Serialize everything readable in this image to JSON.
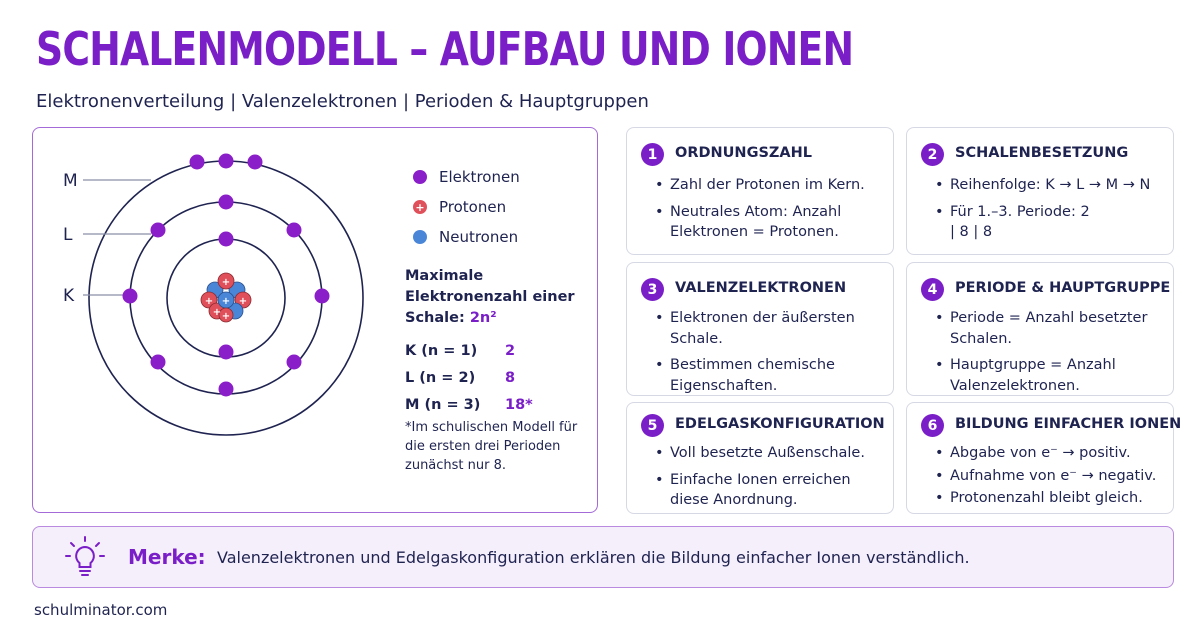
{
  "header": {
    "title": "SCHALENMODELL – AUFBAU UND IONEN",
    "subtitle": "Elektronenverteilung | Valenzelektronen | Perioden & Hauptgruppen"
  },
  "diagram": {
    "shell_labels": [
      "M",
      "L",
      "K"
    ],
    "legend": [
      {
        "label": "Elektronen",
        "color": "#8a1ec8"
      },
      {
        "label": "Protonen",
        "color": "#e0505a",
        "symbol": "+"
      },
      {
        "label": "Neutronen",
        "color": "#4a86d8"
      }
    ],
    "max_heading": "Maximale Elektronenzahl einer Schale:",
    "max_formula": "2n²",
    "capacities": [
      {
        "label": "K (n = 1)",
        "value": "2"
      },
      {
        "label": "L (n = 2)",
        "value": "8"
      },
      {
        "label": "M (n = 3)",
        "value": "18*"
      }
    ],
    "note": "*Im schulischen Modell für die ersten drei Perioden zunächst nur 8."
  },
  "cards": [
    {
      "num": "1",
      "title": "ORDNUNGSZAHL",
      "items": [
        "Zahl der Protonen im Kern.",
        "Neutrales Atom: Anzahl Elektronen = Protonen."
      ]
    },
    {
      "num": "2",
      "title": "SCHALENBESETZUNG",
      "items": [
        "Reihenfolge: K → L → M → N",
        "Für 1.–3. Periode: 2 | 8 | 8"
      ]
    },
    {
      "num": "3",
      "title": "VALENZELEKTRONEN",
      "items": [
        "Elektronen der äußersten Schale.",
        "Bestimmen chemische Eigenschaften."
      ]
    },
    {
      "num": "4",
      "title": "PERIODE & HAUPTGRUPPE",
      "items": [
        "Periode = Anzahl besetzter Schalen.",
        "Hauptgruppe = Anzahl Valenzelektronen."
      ]
    },
    {
      "num": "5",
      "title": "EDELGASKONFIGURATION",
      "items": [
        "Voll besetzte Außenschale.",
        "Einfache Ionen erreichen diese Anordnung."
      ]
    },
    {
      "num": "6",
      "title": "BILDUNG EINFACHER IONEN",
      "items": [
        "Abgabe von e⁻ → positiv.",
        "Aufnahme von e⁻ → negativ.",
        "Protonenzahl bleibt gleich."
      ]
    }
  ],
  "merke": {
    "label": "Merke:",
    "text": "Valenzelektronen und Edelgaskonfiguration erklären die Bildung einfacher Ionen verständlich.",
    "icon": "lightbulb-icon"
  },
  "footer": "schulminator.com",
  "colors": {
    "accent": "#7a1fc8",
    "text": "#1f2350",
    "electron": "#8a1ec8",
    "proton": "#e0505a",
    "neutron": "#4a86d8"
  }
}
